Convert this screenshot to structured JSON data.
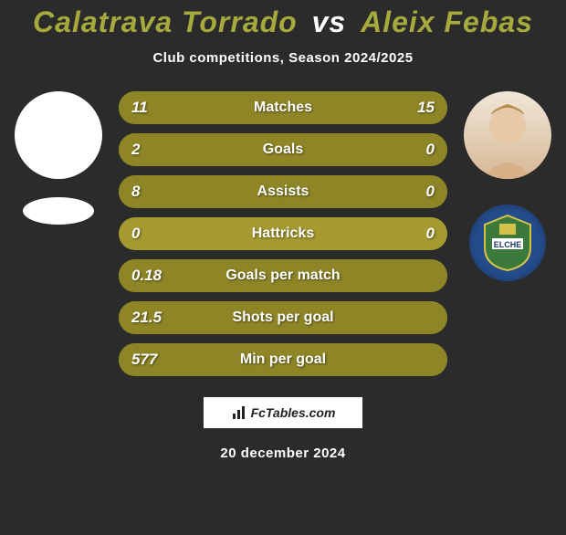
{
  "title": {
    "player1": "Calatrava Torrado",
    "vs": "vs",
    "player2": "Aleix Febas",
    "player1_color": "#a6aa3c",
    "vs_color": "#ffffff",
    "player2_color": "#a6aa3c",
    "font_size": 32,
    "font_weight": "900"
  },
  "subtitle": "Club competitions, Season 2024/2025",
  "bar_style": {
    "bg_color": "#a59a2f",
    "fill_color": "#8d8526",
    "height": 36,
    "radius": 18,
    "gap": 10,
    "text_color": "#ffffff"
  },
  "stats": [
    {
      "label": "Matches",
      "left_val": "11",
      "right_val": "15",
      "left_fill_pct": 42,
      "right_fill_pct": 58
    },
    {
      "label": "Goals",
      "left_val": "2",
      "right_val": "0",
      "left_fill_pct": 100,
      "right_fill_pct": 0
    },
    {
      "label": "Assists",
      "left_val": "8",
      "right_val": "0",
      "left_fill_pct": 100,
      "right_fill_pct": 0
    },
    {
      "label": "Hattricks",
      "left_val": "0",
      "right_val": "0",
      "left_fill_pct": 0,
      "right_fill_pct": 0
    },
    {
      "label": "Goals per match",
      "left_val": "0.18",
      "right_val": "",
      "left_fill_pct": 100,
      "right_fill_pct": 0
    },
    {
      "label": "Shots per goal",
      "left_val": "21.5",
      "right_val": "",
      "left_fill_pct": 100,
      "right_fill_pct": 0
    },
    {
      "label": "Min per goal",
      "left_val": "577",
      "right_val": "",
      "left_fill_pct": 100,
      "right_fill_pct": 0
    }
  ],
  "left_player": {
    "avatar_bg": "#ffffff",
    "club_bg": "#2b2b2b"
  },
  "right_player": {
    "avatar_bg": "#e8d6c4",
    "club_bg": "#1a3a6e",
    "club_name": "ELCHE",
    "club_text_color": "#ffffff",
    "club_accent": "#3c7a3c"
  },
  "footer": {
    "brand": "FcTables.com",
    "date": "20 december 2024"
  },
  "colors": {
    "page_bg": "#2b2b2b"
  }
}
